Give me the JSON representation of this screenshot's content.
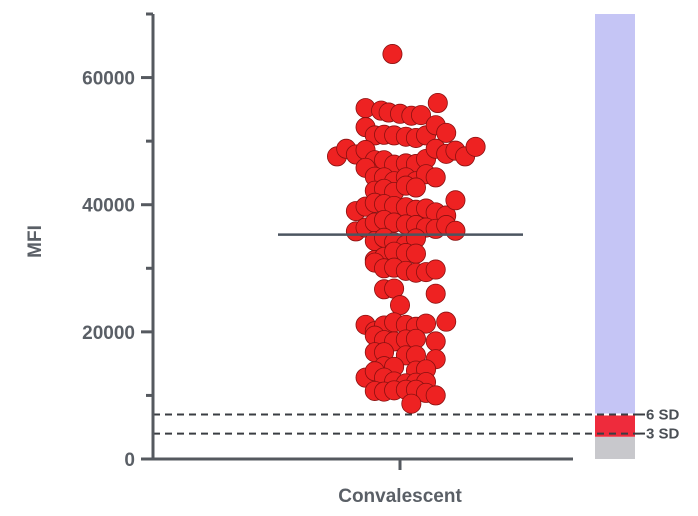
{
  "chart_data": {
    "type": "scatter",
    "ylabel": "MFI",
    "xlabel": "Convalescent",
    "ylim": [
      0,
      70000
    ],
    "y_ticks": [
      0,
      20000,
      40000,
      60000
    ],
    "y_tick_labels": [
      "0",
      "20000",
      "40000",
      "60000"
    ],
    "mean": 35300,
    "reference_lines": [
      {
        "label": "6 SD",
        "value": 7000
      },
      {
        "label": "3 SD",
        "value": 4000
      }
    ],
    "side_bar": [
      {
        "from": 0,
        "to": 3500,
        "color": "#c8c8cc"
      },
      {
        "from": 3500,
        "to": 7000,
        "color": "#ee2b3c"
      },
      {
        "from": 7000,
        "to": 70000,
        "color": "#c5c5f5"
      }
    ],
    "point_color": "#ee2222",
    "point_outline": "#8a1010",
    "points": [
      [
        -0.18,
        63700
      ],
      [
        -0.82,
        55200
      ],
      [
        -0.45,
        54800
      ],
      [
        -0.27,
        54500
      ],
      [
        0.0,
        54300
      ],
      [
        0.27,
        54000
      ],
      [
        0.5,
        54100
      ],
      [
        0.9,
        56000
      ],
      [
        -0.82,
        52200
      ],
      [
        -0.6,
        50900
      ],
      [
        -0.38,
        51000
      ],
      [
        -0.14,
        50900
      ],
      [
        0.14,
        50700
      ],
      [
        0.38,
        50500
      ],
      [
        0.62,
        50900
      ],
      [
        0.85,
        52500
      ],
      [
        1.1,
        51300
      ],
      [
        -1.5,
        47600
      ],
      [
        -1.28,
        48800
      ],
      [
        -1.05,
        47900
      ],
      [
        -0.82,
        48600
      ],
      [
        -0.6,
        47000
      ],
      [
        -0.38,
        47000
      ],
      [
        -0.14,
        46300
      ],
      [
        0.14,
        46500
      ],
      [
        0.38,
        46400
      ],
      [
        0.62,
        47200
      ],
      [
        0.85,
        48800
      ],
      [
        1.1,
        48000
      ],
      [
        1.32,
        48500
      ],
      [
        1.55,
        47600
      ],
      [
        1.8,
        49100
      ],
      [
        -0.82,
        45800
      ],
      [
        -0.6,
        44400
      ],
      [
        -0.38,
        44300
      ],
      [
        -0.14,
        43700
      ],
      [
        0.14,
        44300
      ],
      [
        0.38,
        43700
      ],
      [
        0.62,
        44800
      ],
      [
        0.85,
        44300
      ],
      [
        -0.6,
        42200
      ],
      [
        -0.38,
        42500
      ],
      [
        -0.14,
        42000
      ],
      [
        0.14,
        43000
      ],
      [
        0.38,
        42700
      ],
      [
        -1.05,
        39000
      ],
      [
        -0.82,
        39700
      ],
      [
        -0.6,
        40300
      ],
      [
        -0.38,
        40100
      ],
      [
        -0.14,
        39800
      ],
      [
        0.14,
        39600
      ],
      [
        0.38,
        39200
      ],
      [
        0.62,
        39400
      ],
      [
        0.85,
        38800
      ],
      [
        1.1,
        38300
      ],
      [
        1.32,
        40700
      ],
      [
        -1.05,
        35800
      ],
      [
        -0.82,
        36400
      ],
      [
        -0.6,
        37200
      ],
      [
        -0.38,
        37600
      ],
      [
        -0.14,
        37200
      ],
      [
        0.14,
        36900
      ],
      [
        0.38,
        36800
      ],
      [
        0.62,
        36400
      ],
      [
        0.85,
        36200
      ],
      [
        1.1,
        36800
      ],
      [
        1.32,
        35900
      ],
      [
        -0.6,
        34300
      ],
      [
        -0.38,
        34800
      ],
      [
        -0.14,
        34100
      ],
      [
        0.14,
        33700
      ],
      [
        0.38,
        34700
      ],
      [
        -0.6,
        31300
      ],
      [
        -0.38,
        31800
      ],
      [
        -0.14,
        32600
      ],
      [
        0.14,
        32400
      ],
      [
        0.38,
        32300
      ],
      [
        -0.6,
        30900
      ],
      [
        -0.38,
        30000
      ],
      [
        -0.14,
        30100
      ],
      [
        0.14,
        29600
      ],
      [
        0.38,
        29300
      ],
      [
        0.62,
        29400
      ],
      [
        0.85,
        29800
      ],
      [
        -0.38,
        26700
      ],
      [
        -0.14,
        26800
      ],
      [
        0.85,
        26000
      ],
      [
        0.0,
        24200
      ],
      [
        -0.82,
        21100
      ],
      [
        -0.6,
        20100
      ],
      [
        -0.38,
        21000
      ],
      [
        -0.14,
        21500
      ],
      [
        0.14,
        21100
      ],
      [
        0.38,
        20800
      ],
      [
        0.62,
        21300
      ],
      [
        1.1,
        21600
      ],
      [
        -0.6,
        19400
      ],
      [
        -0.38,
        18700
      ],
      [
        -0.14,
        18500
      ],
      [
        0.14,
        18800
      ],
      [
        0.38,
        18900
      ],
      [
        0.85,
        18500
      ],
      [
        -0.6,
        16800
      ],
      [
        -0.38,
        16800
      ],
      [
        0.14,
        16300
      ],
      [
        0.38,
        16300
      ],
      [
        0.85,
        15700
      ],
      [
        -0.38,
        14600
      ],
      [
        -0.14,
        14500
      ],
      [
        0.38,
        13900
      ],
      [
        0.62,
        14100
      ],
      [
        -0.82,
        12800
      ],
      [
        -0.6,
        13800
      ],
      [
        -0.38,
        12800
      ],
      [
        -0.14,
        12200
      ],
      [
        0.14,
        11900
      ],
      [
        0.38,
        12000
      ],
      [
        0.62,
        12100
      ],
      [
        -0.6,
        10700
      ],
      [
        -0.38,
        10600
      ],
      [
        -0.14,
        10800
      ],
      [
        0.14,
        10900
      ],
      [
        0.38,
        10900
      ],
      [
        0.62,
        10400
      ],
      [
        0.85,
        10000
      ],
      [
        0.27,
        8700
      ]
    ]
  }
}
